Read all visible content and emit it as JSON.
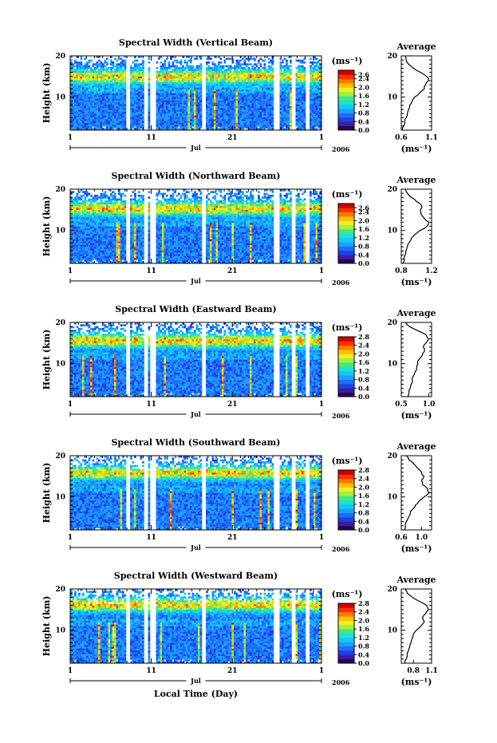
{
  "chart_data": [
    {
      "type": "heatmap",
      "title": "Spectral Width (Vertical Beam)",
      "ylabel": "Height (km)",
      "yticks": [
        "20",
        "10"
      ],
      "xticks": [
        "1",
        "11",
        "21",
        "1"
      ],
      "xsub": "Jul",
      "year": "2006",
      "xlim_days": [
        1,
        32
      ],
      "ylim_km": [
        2,
        20
      ],
      "colorbar": {
        "unit": "(ms⁻¹)",
        "ticks": [
          "2.6",
          "2.4",
          "2.0",
          "1.6",
          "1.2",
          "0.8",
          "0.4",
          "0.0"
        ],
        "range": [
          0.0,
          2.8
        ]
      },
      "average": {
        "title": "Average",
        "xlabel": "(ms⁻¹)",
        "xticks": [
          "0.6",
          "1.1"
        ],
        "xlim": [
          0.6,
          1.1
        ],
        "heights_km": [
          2,
          3,
          4,
          5,
          6,
          7,
          8,
          9,
          10,
          11,
          12,
          13,
          14,
          15,
          16,
          17,
          18,
          19,
          20
        ],
        "values": [
          0.62,
          0.64,
          0.66,
          0.68,
          0.7,
          0.72,
          0.74,
          0.78,
          0.82,
          0.9,
          0.98,
          1.0,
          1.05,
          1.02,
          0.92,
          0.8,
          0.72,
          0.68,
          0.66
        ]
      }
    },
    {
      "type": "heatmap",
      "title": "Spectral Width (Northward Beam)",
      "ylabel": "Height (km)",
      "yticks": [
        "20",
        "10"
      ],
      "xticks": [
        "1",
        "11",
        "21",
        "1"
      ],
      "xsub": "Jul",
      "year": "2006",
      "xlim_days": [
        1,
        32
      ],
      "ylim_km": [
        2,
        20
      ],
      "colorbar": {
        "unit": "(ms⁻¹)",
        "ticks": [
          "2.6",
          "2.4",
          "2.0",
          "1.6",
          "1.2",
          "0.8",
          "0.4",
          "0.0"
        ],
        "range": [
          0.0,
          2.8
        ]
      },
      "average": {
        "title": "Average",
        "xlabel": "(ms⁻¹)",
        "xticks": [
          "0.8",
          "1.2"
        ],
        "xlim": [
          0.8,
          1.2
        ],
        "heights_km": [
          2,
          3,
          4,
          5,
          6,
          7,
          8,
          9,
          10,
          11,
          12,
          13,
          14,
          15,
          16,
          17,
          18,
          19,
          20
        ],
        "values": [
          0.82,
          0.84,
          0.85,
          0.86,
          0.88,
          0.9,
          0.93,
          0.98,
          1.05,
          1.14,
          1.16,
          1.1,
          1.06,
          1.05,
          1.07,
          1.0,
          0.93,
          0.88,
          0.85
        ]
      }
    },
    {
      "type": "heatmap",
      "title": "Spectral Width (Eastward Beam)",
      "ylabel": "Height (km)",
      "yticks": [
        "20",
        "10"
      ],
      "xticks": [
        "1",
        "11",
        "21",
        "1"
      ],
      "xsub": "Jul",
      "year": "2006",
      "xlim_days": [
        1,
        32
      ],
      "ylim_km": [
        2,
        20
      ],
      "colorbar": {
        "unit": "(ms⁻¹)",
        "ticks": [
          "2.8",
          "2.4",
          "2.0",
          "1.6",
          "1.2",
          "0.8",
          "0.4",
          "0.0"
        ],
        "range": [
          0.0,
          2.8
        ]
      },
      "average": {
        "title": "Average",
        "xlabel": "(ms⁻¹)",
        "xticks": [
          "0.5",
          "1.0"
        ],
        "xlim": [
          0.5,
          1.05
        ],
        "heights_km": [
          2,
          3,
          4,
          5,
          6,
          7,
          8,
          9,
          10,
          11,
          12,
          13,
          14,
          15,
          16,
          17,
          18,
          19,
          20
        ],
        "values": [
          0.62,
          0.64,
          0.66,
          0.68,
          0.7,
          0.72,
          0.75,
          0.78,
          0.8,
          0.82,
          0.88,
          0.92,
          0.9,
          0.95,
          1.0,
          0.95,
          0.8,
          0.65,
          0.58
        ]
      }
    },
    {
      "type": "heatmap",
      "title": "Spectral Width (Southward Beam)",
      "ylabel": "Height (km)",
      "yticks": [
        "20",
        "10"
      ],
      "xticks": [
        "1",
        "11",
        "21",
        "1"
      ],
      "xsub": "Jul",
      "year": "2006",
      "xlim_days": [
        1,
        32
      ],
      "ylim_km": [
        2,
        20
      ],
      "colorbar": {
        "unit": "(ms⁻¹)",
        "ticks": [
          "2.8",
          "2.4",
          "2.0",
          "1.6",
          "1.2",
          "0.8",
          "0.4",
          "0.0"
        ],
        "range": [
          0.0,
          2.8
        ]
      },
      "average": {
        "title": "Average",
        "xlabel": "(ms⁻¹)",
        "xticks": [
          "0.6",
          "1.0"
        ],
        "xlim": [
          0.6,
          1.2
        ],
        "heights_km": [
          2,
          3,
          4,
          5,
          6,
          7,
          8,
          9,
          10,
          11,
          12,
          13,
          14,
          15,
          16,
          17,
          18,
          19,
          20
        ],
        "values": [
          0.66,
          0.68,
          0.7,
          0.74,
          0.78,
          0.82,
          0.88,
          0.95,
          1.05,
          1.15,
          1.12,
          1.02,
          1.0,
          1.05,
          1.0,
          0.92,
          0.85,
          0.75,
          0.7
        ]
      }
    },
    {
      "type": "heatmap",
      "title": "Spectral Width (Westward Beam)",
      "ylabel": "Height (km)",
      "yticks": [
        "20",
        "10"
      ],
      "xticks": [
        "1",
        "11",
        "21",
        "1"
      ],
      "xsub": "Jul",
      "year": "2006",
      "xlabel": "Local Time (Day)",
      "xlim_days": [
        1,
        32
      ],
      "ylim_km": [
        2,
        20
      ],
      "colorbar": {
        "unit": "(ms⁻¹)",
        "ticks": [
          "2.8",
          "2.4",
          "2.0",
          "1.6",
          "1.2",
          "0.8",
          "0.4",
          "0.0"
        ],
        "range": [
          0.0,
          2.8
        ]
      },
      "average": {
        "title": "Average",
        "xlabel": "(ms⁻¹)",
        "xticks": [
          "0.8",
          "1.1"
        ],
        "xlim": [
          0.6,
          1.1
        ],
        "heights_km": [
          2,
          3,
          4,
          5,
          6,
          7,
          8,
          9,
          10,
          11,
          12,
          13,
          14,
          15,
          16,
          17,
          18,
          19,
          20
        ],
        "values": [
          0.66,
          0.68,
          0.7,
          0.72,
          0.74,
          0.76,
          0.78,
          0.8,
          0.85,
          0.92,
          0.98,
          0.95,
          1.0,
          1.05,
          1.02,
          0.9,
          0.78,
          0.7,
          0.66
        ]
      }
    }
  ],
  "gaps_days": [
    [
      8.0,
      8.4
    ],
    [
      10.0,
      10.6
    ],
    [
      10.9,
      11.5
    ],
    [
      17.3,
      17.8
    ],
    [
      26.2,
      26.9
    ],
    [
      28.3,
      28.7
    ],
    [
      30.0,
      30.5
    ]
  ],
  "colormap": [
    "#2a005a",
    "#3b1ea8",
    "#2040e0",
    "#1e6cff",
    "#1aa0ff",
    "#10c8ff",
    "#20e0d0",
    "#40e880",
    "#a0f040",
    "#f0f020",
    "#ffc000",
    "#ff7a00",
    "#ff3000",
    "#d00000"
  ]
}
